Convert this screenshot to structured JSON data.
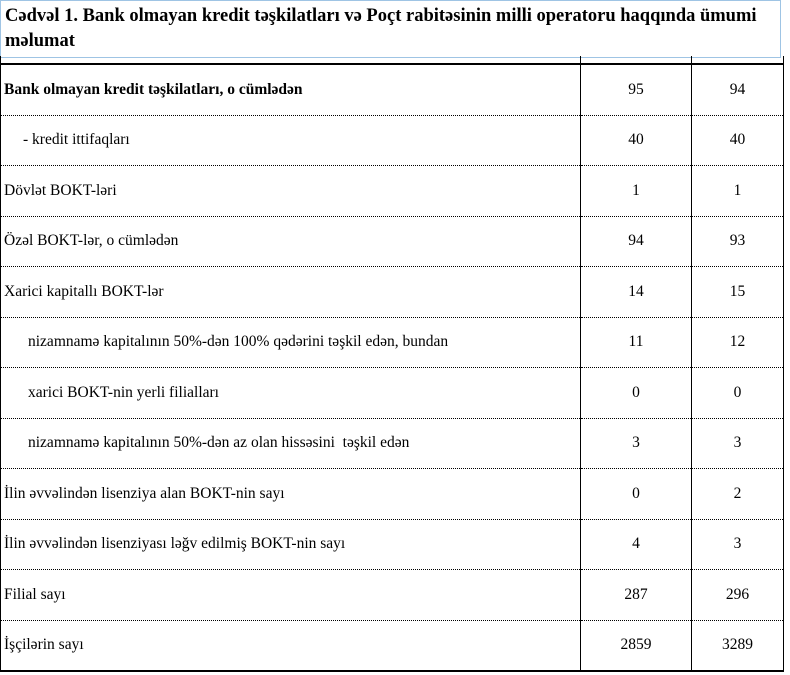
{
  "title": "Cədvəl 1. Bank olmayan kredit təşkilatları və Poçt rabitəsinin milli operatoru haqqında ümumi məlumat",
  "table": {
    "rows": [
      [
        "Bank olmayan kredit təşkilatları, o cümlədən",
        95,
        94
      ],
      [
        "- kredit ittifaqları",
        40,
        40
      ],
      [
        "Dövlət BOKT-ləri",
        1,
        1
      ],
      [
        "Özəl BOKT-lər, o cümlədən",
        94,
        93
      ],
      [
        "Xarici kapitallı BOKT-lər",
        14,
        15
      ],
      [
        "nizamnamə kapitalının 50%-dən 100% qədərini təşkil edən, bundan",
        11,
        12
      ],
      [
        "xarici BOKT-nin yerli filialları",
        0,
        0
      ],
      [
        "nizamnamə kapitalının 50%-dən az olan hissəsini  təşkil edən",
        3,
        3
      ],
      [
        "İlin əvvəlindən lisenziya alan BOKT-nin sayı",
        0,
        2
      ],
      [
        "İlin əvvəlindən lisenziyası ləğv edilmiş BOKT-nin sayı",
        4,
        3
      ],
      [
        "Filial sayı",
        287,
        296
      ],
      [
        "İşçilərin sayı",
        2859,
        3289
      ]
    ]
  }
}
